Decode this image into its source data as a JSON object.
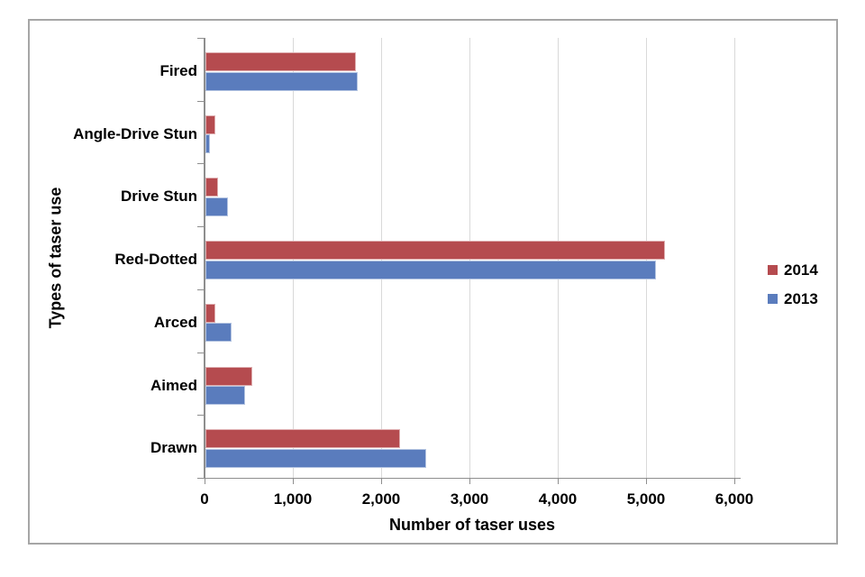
{
  "chart_data": {
    "type": "bar",
    "orientation": "horizontal",
    "title": "",
    "xlabel": "Number of taser uses",
    "ylabel": "Types of taser use",
    "categories": [
      "Fired",
      "Angle-Drive Stun",
      "Drive Stun",
      "Red-Dotted",
      "Arced",
      "Aimed",
      "Drawn"
    ],
    "series": [
      {
        "name": "2014",
        "color": "#b54b4f",
        "values": [
          1700,
          110,
          140,
          5200,
          110,
          530,
          2200
        ]
      },
      {
        "name": "2013",
        "color": "#5a7cbd",
        "values": [
          1720,
          50,
          250,
          5100,
          300,
          450,
          2500
        ]
      }
    ],
    "x_ticks": [
      {
        "label": "0",
        "value": 0
      },
      {
        "label": "1,000",
        "value": 1000
      },
      {
        "label": "2,000",
        "value": 2000
      },
      {
        "label": "3,000",
        "value": 3000
      },
      {
        "label": "4,000",
        "value": 4000
      },
      {
        "label": "5,000",
        "value": 5000
      },
      {
        "label": "6,000",
        "value": 6000
      }
    ],
    "xlim": [
      0,
      6060
    ],
    "grid": true,
    "legend_position": "right",
    "legend_entries": [
      "2014",
      "2013"
    ]
  },
  "colors": {
    "bar_2014": "#b54b4f",
    "bar_2013": "#5a7cbd",
    "gridline": "#d9d9d9",
    "axis_line": "#8e8e8e",
    "frame_border": "#a6a6a6",
    "text": "#000000"
  }
}
